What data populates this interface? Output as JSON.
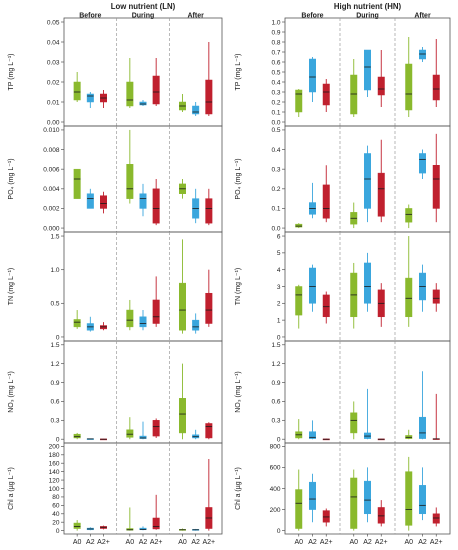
{
  "colors": {
    "A0": "#8ab92d",
    "A2": "#3aa6dd",
    "A2+": "#c0202e",
    "frame": "#555555",
    "divider": "#9a9a9a"
  },
  "chart_data": [
    {
      "type": "box",
      "title": "Low nutrient (LN)",
      "phases": [
        "Before",
        "During",
        "After"
      ],
      "categories": [
        "A0",
        "A2",
        "A2+"
      ],
      "panels": [
        {
          "id": "TP",
          "ylabel": "TP (mg L⁻¹)",
          "ylim": [
            0,
            0.05
          ],
          "ticks": [
            "0.00",
            "0.01",
            "0.02",
            "0.03",
            "0.04",
            "0.05"
          ],
          "boxes": [
            [
              [
                0.01,
                0.011,
                0.015,
                0.02,
                0.025
              ],
              [
                0.007,
                0.01,
                0.013,
                0.014,
                0.015
              ],
              [
                0.007,
                0.01,
                0.012,
                0.014,
                0.016
              ]
            ],
            [
              [
                0.007,
                0.008,
                0.011,
                0.02,
                0.032
              ],
              [
                0.008,
                0.0085,
                0.009,
                0.01,
                0.011
              ],
              [
                0.008,
                0.009,
                0.015,
                0.023,
                0.032
              ]
            ],
            [
              [
                0.005,
                0.006,
                0.008,
                0.01,
                0.014
              ],
              [
                0.003,
                0.004,
                0.005,
                0.008,
                0.01
              ],
              [
                0.003,
                0.004,
                0.01,
                0.021,
                0.04
              ]
            ]
          ]
        },
        {
          "id": "PO4",
          "ylabel": "PO₄ (mg L⁻¹)",
          "ylim": [
            0,
            0.01
          ],
          "ticks": [
            "0.000",
            "0.002",
            "0.004",
            "0.006",
            "0.008",
            "0.010"
          ],
          "boxes": [
            [
              [
                0.003,
                0.003,
                0.005,
                0.006,
                0.006
              ],
              [
                0.002,
                0.002,
                0.003,
                0.0035,
                0.004
              ],
              [
                0.0015,
                0.002,
                0.0025,
                0.0033,
                0.0037
              ]
            ],
            [
              [
                0.0025,
                0.003,
                0.004,
                0.0065,
                0.01
              ],
              [
                0.0012,
                0.002,
                0.003,
                0.0035,
                0.0045
              ],
              [
                0.0003,
                0.0005,
                0.002,
                0.004,
                0.005
              ]
            ],
            [
              [
                0.003,
                0.0035,
                0.004,
                0.0045,
                0.005
              ],
              [
                0.0005,
                0.001,
                0.002,
                0.003,
                0.004
              ],
              [
                0.0003,
                0.0005,
                0.002,
                0.003,
                0.004
              ]
            ]
          ]
        },
        {
          "id": "TN",
          "ylabel": "TN (mg L⁻¹)",
          "ylim": [
            0,
            1.5
          ],
          "ticks": [
            "0",
            "0.5",
            "1.0",
            "1.5"
          ],
          "boxes": [
            [
              [
                0.12,
                0.15,
                0.22,
                0.26,
                0.4
              ],
              [
                0.08,
                0.1,
                0.15,
                0.2,
                0.3
              ],
              [
                0.1,
                0.12,
                0.15,
                0.17,
                0.22
              ]
            ],
            [
              [
                0.1,
                0.15,
                0.25,
                0.4,
                0.55
              ],
              [
                0.1,
                0.15,
                0.2,
                0.3,
                0.4
              ],
              [
                0.15,
                0.2,
                0.3,
                0.55,
                0.9
              ]
            ],
            [
              [
                0.05,
                0.1,
                0.4,
                0.8,
                1.45
              ],
              [
                0.05,
                0.1,
                0.15,
                0.25,
                0.35
              ],
              [
                0.15,
                0.2,
                0.4,
                0.65,
                1.0
              ]
            ]
          ]
        },
        {
          "id": "NO3",
          "ylabel": "NO₃ (mg L⁻¹)",
          "ylim": [
            0,
            1.5
          ],
          "ticks": [
            "0",
            "0.3",
            "0.6",
            "0.9",
            "1.2",
            "1.5"
          ],
          "boxes": [
            [
              [
                0.0,
                0.02,
                0.04,
                0.08,
                0.1
              ],
              [
                0.0,
                0.0,
                0.005,
                0.01,
                0.01
              ],
              [
                0.0,
                0.0,
                0.0,
                0.005,
                0.005
              ]
            ],
            [
              [
                0.0,
                0.03,
                0.08,
                0.15,
                0.35
              ],
              [
                0.0,
                0.01,
                0.02,
                0.05,
                0.28
              ],
              [
                0.02,
                0.05,
                0.2,
                0.3,
                0.33
              ]
            ],
            [
              [
                0.0,
                0.1,
                0.4,
                0.65,
                1.2
              ],
              [
                0.0,
                0.02,
                0.04,
                0.07,
                0.15
              ],
              [
                0.0,
                0.02,
                0.2,
                0.25,
                0.27
              ]
            ]
          ]
        },
        {
          "id": "Chla",
          "ylabel": "Chl a (µg L⁻¹)",
          "ylim": [
            0,
            200
          ],
          "ticks": [
            "0",
            "20",
            "40",
            "60",
            "80",
            "100",
            "120",
            "140",
            "160",
            "180",
            "200"
          ],
          "boxes": [
            [
              [
                0,
                5,
                10,
                18,
                25
              ],
              [
                1,
                2,
                4,
                6,
                8
              ],
              [
                3,
                5,
                8,
                10,
                12
              ]
            ],
            [
              [
                0,
                1,
                2,
                5,
                55
              ],
              [
                1,
                2,
                3,
                6,
                10
              ],
              [
                2,
                4,
                10,
                30,
                85
              ]
            ],
            [
              [
                0,
                1,
                2,
                3,
                5
              ],
              [
                0,
                1,
                2,
                3,
                4
              ],
              [
                0,
                5,
                30,
                55,
                170
              ]
            ]
          ]
        }
      ]
    },
    {
      "type": "box",
      "title": "High nutrient (HN)",
      "phases": [
        "Before",
        "During",
        "After"
      ],
      "categories": [
        "A0",
        "A2",
        "A2+"
      ],
      "panels": [
        {
          "id": "TP",
          "ylabel": "TP (mg L⁻¹)",
          "ylim": [
            0,
            1.0
          ],
          "ticks": [
            "0.0",
            "0.1",
            "0.2",
            "0.3",
            "0.4",
            "0.5",
            "0.6",
            "0.7",
            "0.8",
            "0.9",
            "1.0"
          ],
          "boxes": [
            [
              [
                0.05,
                0.1,
                0.28,
                0.32,
                0.33
              ],
              [
                0.2,
                0.3,
                0.45,
                0.63,
                0.65
              ],
              [
                0.1,
                0.17,
                0.3,
                0.38,
                0.43
              ]
            ],
            [
              [
                0.05,
                0.08,
                0.28,
                0.47,
                0.63
              ],
              [
                0.25,
                0.32,
                0.55,
                0.72,
                0.72
              ],
              [
                0.15,
                0.27,
                0.33,
                0.45,
                0.72
              ]
            ],
            [
              [
                0.05,
                0.12,
                0.28,
                0.58,
                0.85
              ],
              [
                0.6,
                0.63,
                0.68,
                0.72,
                0.75
              ],
              [
                0.15,
                0.22,
                0.33,
                0.47,
                0.83
              ]
            ]
          ]
        },
        {
          "id": "PO4",
          "ylabel": "PO₄ (mg L⁻¹)",
          "ylim": [
            0,
            0.5
          ],
          "ticks": [
            "0.0",
            "0.1",
            "0.2",
            "0.3",
            "0.4",
            "0.5"
          ],
          "boxes": [
            [
              [
                0.0,
                0.005,
                0.01,
                0.02,
                0.025
              ],
              [
                0.05,
                0.07,
                0.1,
                0.13,
                0.23
              ],
              [
                0.03,
                0.05,
                0.1,
                0.22,
                0.32
              ]
            ],
            [
              [
                0.0,
                0.02,
                0.05,
                0.08,
                0.13
              ],
              [
                0.03,
                0.1,
                0.25,
                0.38,
                0.42
              ],
              [
                0.03,
                0.06,
                0.2,
                0.28,
                0.45
              ]
            ],
            [
              [
                0.0,
                0.03,
                0.07,
                0.1,
                0.12
              ],
              [
                0.25,
                0.28,
                0.35,
                0.38,
                0.4
              ],
              [
                0.03,
                0.1,
                0.25,
                0.32,
                0.48
              ]
            ]
          ]
        },
        {
          "id": "TN",
          "ylabel": "TN (mg L⁻¹)",
          "ylim": [
            0,
            6
          ],
          "ticks": [
            "0",
            "1",
            "2",
            "3",
            "4",
            "5",
            "6"
          ],
          "boxes": [
            [
              [
                0.5,
                1.3,
                2.5,
                3.0,
                3.1
              ],
              [
                1.5,
                2.0,
                3.0,
                4.1,
                4.3
              ],
              [
                0.8,
                1.2,
                1.8,
                2.5,
                2.7
              ]
            ],
            [
              [
                0.5,
                1.2,
                2.5,
                3.8,
                4.4
              ],
              [
                1.5,
                2.0,
                3.0,
                4.4,
                5.0
              ],
              [
                0.6,
                1.2,
                2.0,
                2.8,
                3.2
              ]
            ],
            [
              [
                0.6,
                1.2,
                2.3,
                3.5,
                6.0
              ],
              [
                1.5,
                2.2,
                3.0,
                3.8,
                4.3
              ],
              [
                1.5,
                2.0,
                2.3,
                2.8,
                3.2
              ]
            ]
          ]
        },
        {
          "id": "NO3",
          "ylabel": "NO₃ (mg L⁻¹)",
          "ylim": [
            0,
            1.5
          ],
          "ticks": [
            "0",
            "0.3",
            "0.6",
            "0.9",
            "1.2",
            "1.5"
          ],
          "boxes": [
            [
              [
                0.0,
                0.02,
                0.07,
                0.12,
                0.32
              ],
              [
                0.0,
                0.01,
                0.03,
                0.12,
                0.3
              ],
              [
                0.0,
                0.0,
                0.0,
                0.005,
                0.01
              ]
            ],
            [
              [
                0.0,
                0.1,
                0.3,
                0.42,
                0.6
              ],
              [
                0.0,
                0.01,
                0.05,
                0.1,
                0.8
              ],
              [
                0.0,
                0.0,
                0.0,
                0.005,
                0.005
              ]
            ],
            [
              [
                0.0,
                0.01,
                0.03,
                0.06,
                0.15
              ],
              [
                0.0,
                0.01,
                0.1,
                0.35,
                1.08
              ],
              [
                0.0,
                0.0,
                0.005,
                0.01,
                0.72
              ]
            ]
          ]
        },
        {
          "id": "Chla",
          "ylabel": "Chl a (µg L⁻¹)",
          "ylim": [
            0,
            800
          ],
          "ticks": [
            "0",
            "200",
            "400",
            "600",
            "800"
          ],
          "boxes": [
            [
              [
                0,
                20,
                260,
                390,
                580
              ],
              [
                80,
                200,
                300,
                460,
                540
              ],
              [
                40,
                80,
                130,
                190,
                210
              ]
            ],
            [
              [
                0,
                20,
                320,
                500,
                580
              ],
              [
                80,
                160,
                290,
                470,
                600
              ],
              [
                40,
                70,
                140,
                220,
                290
              ]
            ],
            [
              [
                0,
                50,
                200,
                560,
                700
              ],
              [
                100,
                160,
                240,
                430,
                600
              ],
              [
                40,
                70,
                120,
                160,
                220
              ]
            ]
          ]
        }
      ]
    }
  ]
}
